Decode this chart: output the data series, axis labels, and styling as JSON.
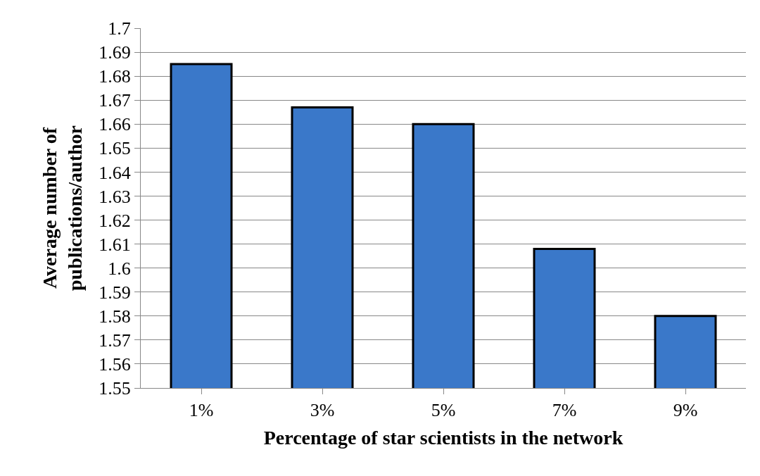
{
  "chart_data": {
    "type": "bar",
    "xlabel": "Percentage of star scientists in the network",
    "ylabel": "Average number of publications/author",
    "categories": [
      "1%",
      "3%",
      "5%",
      "7%",
      "9%"
    ],
    "values": [
      1.685,
      1.667,
      1.66,
      1.608,
      1.58
    ],
    "color": "#3a78c9",
    "ylim": [
      1.55,
      1.7
    ],
    "yticks": [
      1.55,
      1.56,
      1.57,
      1.58,
      1.59,
      1.6,
      1.61,
      1.62,
      1.63,
      1.64,
      1.65,
      1.66,
      1.67,
      1.68,
      1.69,
      1.7
    ],
    "grid": "y"
  }
}
